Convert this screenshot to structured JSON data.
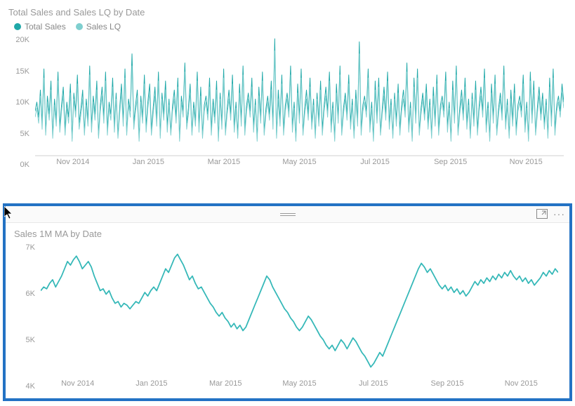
{
  "top_chart": {
    "type": "line",
    "title": "Total Sales and Sales LQ by Date",
    "title_color": "#999999",
    "title_fontsize": 13,
    "background_color": "#ffffff",
    "axis_color": "#d0d0d0",
    "axis_label_color": "#999999",
    "axis_fontsize": 11,
    "ylim": [
      0,
      20
    ],
    "y_ticks": [
      "20K",
      "15K",
      "10K",
      "5K",
      "0K"
    ],
    "x_ticks": [
      "Nov 2014",
      "Jan 2015",
      "Mar 2015",
      "May 2015",
      "Jul 2015",
      "Sep 2015",
      "Nov 2015"
    ],
    "legend": [
      {
        "label": "Total Sales",
        "color": "#1fa8a8"
      },
      {
        "label": "Sales LQ",
        "color": "#7fcfcf"
      }
    ],
    "series": [
      {
        "name": "Total Sales",
        "color": "#1fa8a8",
        "stroke_width": 1,
        "values": [
          7.5,
          9.0,
          6.5,
          11.0,
          5.5,
          14.5,
          4.0,
          10.0,
          7.0,
          12.5,
          3.5,
          9.5,
          6.0,
          14.0,
          5.0,
          8.5,
          11.5,
          4.5,
          9.0,
          6.5,
          12.0,
          3.0,
          10.5,
          7.5,
          13.5,
          5.5,
          8.0,
          11.0,
          4.0,
          9.5,
          6.0,
          15.0,
          5.0,
          10.0,
          7.0,
          12.5,
          3.5,
          8.5,
          11.5,
          6.5,
          14.0,
          4.5,
          9.0,
          7.0,
          13.0,
          5.0,
          10.5,
          3.5,
          8.0,
          12.0,
          6.0,
          14.5,
          4.0,
          9.5,
          7.5,
          17.0,
          5.5,
          8.5,
          11.0,
          3.0,
          10.0,
          6.5,
          13.5,
          5.0,
          9.0,
          12.0,
          4.5,
          8.0,
          11.5,
          6.0,
          14.0,
          3.5,
          10.5,
          7.0,
          12.5,
          5.0,
          9.5,
          4.0,
          8.5,
          11.0,
          6.5,
          13.0,
          3.0,
          10.0,
          7.5,
          15.5,
          5.5,
          8.0,
          12.0,
          4.0,
          9.0,
          6.0,
          14.0,
          5.0,
          11.5,
          3.5,
          8.5,
          10.0,
          7.0,
          13.0,
          4.5,
          9.5,
          6.5,
          12.5,
          3.0,
          10.5,
          5.5,
          14.5,
          4.0,
          8.0,
          11.0,
          7.0,
          13.5,
          5.0,
          9.0,
          3.5,
          12.0,
          6.0,
          15.0,
          4.5,
          8.5,
          10.5,
          7.5,
          13.0,
          5.0,
          9.5,
          3.0,
          11.5,
          6.5,
          14.0,
          4.0,
          8.0,
          10.0,
          7.0,
          12.5,
          5.5,
          19.5,
          3.5,
          11.0,
          6.0,
          13.5,
          4.5,
          8.5,
          10.5,
          7.5,
          15.0,
          5.0,
          9.0,
          3.0,
          12.0,
          6.5,
          14.5,
          4.0,
          8.0,
          11.0,
          7.0,
          13.0,
          5.5,
          9.5,
          3.5,
          10.5,
          6.0,
          12.5,
          4.5,
          8.5,
          11.5,
          7.5,
          14.0,
          5.0,
          9.0,
          3.0,
          12.0,
          6.5,
          15.0,
          4.0,
          8.0,
          10.5,
          7.0,
          13.5,
          5.5,
          9.5,
          3.5,
          11.0,
          6.0,
          19.0,
          4.5,
          8.5,
          10.0,
          7.5,
          14.5,
          5.0,
          9.0,
          3.0,
          12.5,
          6.5,
          13.0,
          4.0,
          8.0,
          11.5,
          7.0,
          14.0,
          5.5,
          9.5,
          3.5,
          10.5,
          6.0,
          12.0,
          4.5,
          8.5,
          11.0,
          7.5,
          15.5,
          5.0,
          9.0,
          3.0,
          13.0,
          6.5,
          14.5,
          4.0,
          8.0,
          10.5,
          7.0,
          12.0,
          5.5,
          9.5,
          3.5,
          11.5,
          6.0,
          13.5,
          4.5,
          8.5,
          10.0,
          7.5,
          14.0,
          5.0,
          9.0,
          3.0,
          12.5,
          6.5,
          15.0,
          4.0,
          8.0,
          11.0,
          7.0,
          13.0,
          5.5,
          9.5,
          3.5,
          10.5,
          6.0,
          12.5,
          4.5,
          8.5,
          11.5,
          7.5,
          14.5,
          5.0,
          9.0,
          3.0,
          12.0,
          6.5,
          13.5,
          4.0,
          8.0,
          10.5,
          7.0,
          15.0,
          5.5,
          9.5,
          3.5,
          11.0,
          6.0,
          12.0,
          4.5,
          8.5,
          10.0,
          7.5,
          13.5,
          5.0,
          9.0,
          3.0,
          14.0,
          6.5,
          12.5,
          4.0,
          8.0,
          11.5,
          7.0,
          10.5,
          5.5,
          9.5,
          3.5,
          13.0,
          6.0,
          14.5,
          4.5,
          8.5,
          10.0,
          7.5,
          12.0,
          9.0
        ]
      },
      {
        "name": "Sales LQ",
        "color": "#7fcfcf",
        "stroke_width": 1,
        "values": [
          6.5,
          8.0,
          5.5,
          10.0,
          4.5,
          13.0,
          3.5,
          9.0,
          6.0,
          11.0,
          3.0,
          8.5,
          5.0,
          12.5,
          4.0,
          7.5,
          10.0,
          3.5,
          8.0,
          5.5,
          10.5,
          2.5,
          9.5,
          6.5,
          12.0,
          4.5,
          7.0,
          9.5,
          3.5,
          8.5,
          5.0,
          13.5,
          4.0,
          9.0,
          6.0,
          11.0,
          3.0,
          7.5,
          10.0,
          5.5,
          12.5,
          3.5,
          8.0,
          6.0,
          11.5,
          4.0,
          9.5,
          3.0,
          7.0,
          10.5,
          5.0,
          13.0,
          3.5,
          8.5,
          6.5,
          15.0,
          4.5,
          7.5,
          9.5,
          2.5,
          9.0,
          5.5,
          12.0,
          4.0,
          8.0,
          10.5,
          3.5,
          7.0,
          10.0,
          5.0,
          12.5,
          3.0,
          9.5,
          6.0,
          11.0,
          4.0,
          8.5,
          3.5,
          7.5,
          9.5,
          5.5,
          11.5,
          2.5,
          9.0,
          6.5,
          14.0,
          4.5,
          7.0,
          10.5,
          3.5,
          8.0,
          5.0,
          12.5,
          4.0,
          10.0,
          3.0,
          7.5,
          9.0,
          6.0,
          11.5,
          3.5,
          8.5,
          5.5,
          11.0,
          2.5,
          9.5,
          4.5,
          13.0,
          3.5,
          7.0,
          9.5,
          6.0,
          12.0,
          4.0,
          8.0,
          3.0,
          10.5,
          5.0,
          13.5,
          3.5,
          7.5,
          9.5,
          6.5,
          11.5,
          4.0,
          8.5,
          2.5,
          10.0,
          5.5,
          12.5,
          3.5,
          7.0,
          9.0,
          6.0,
          11.0,
          4.5,
          17.5,
          3.0,
          9.5,
          5.0,
          12.0,
          3.5,
          7.5,
          9.5,
          6.5,
          13.5,
          4.0,
          8.0,
          2.5,
          10.5,
          5.5,
          13.0,
          3.5,
          7.0,
          9.5,
          6.0,
          11.5,
          4.5,
          8.5,
          3.0,
          9.5,
          5.0,
          11.0,
          3.5,
          7.5,
          10.0,
          6.5,
          12.5,
          4.0,
          8.0,
          2.5,
          10.5,
          5.5,
          13.5,
          3.5,
          7.0,
          9.5,
          6.0,
          12.0,
          4.5,
          8.5,
          3.0,
          9.5,
          5.0,
          17.0,
          3.5,
          7.5,
          9.0,
          6.5,
          13.0,
          4.0,
          8.0,
          2.5,
          11.0,
          5.5,
          11.5,
          3.5,
          7.0,
          10.0,
          6.0,
          12.5,
          4.5,
          8.5,
          3.0,
          9.5,
          5.0,
          10.5,
          3.5,
          7.5,
          9.5,
          6.5,
          14.0,
          4.0,
          8.0,
          2.5,
          11.5,
          5.5,
          13.0,
          3.5,
          7.0,
          9.5,
          6.0,
          10.5,
          4.5,
          8.5,
          3.0,
          10.0,
          5.0,
          12.0,
          3.5,
          7.5,
          9.0,
          6.5,
          12.5,
          4.0,
          8.0,
          2.5,
          11.0,
          5.5,
          13.5,
          3.5,
          7.0,
          9.5,
          6.0,
          11.5,
          4.5,
          8.5,
          3.0,
          9.5,
          5.0,
          11.0,
          3.5,
          7.5,
          10.0,
          6.5,
          13.0,
          4.0,
          8.0,
          2.5,
          10.5,
          5.5,
          12.0,
          3.5,
          7.0,
          9.5,
          6.0,
          13.5,
          4.5,
          8.5,
          3.0,
          9.5,
          5.0,
          10.5,
          3.5,
          7.5,
          9.0,
          6.5,
          12.0,
          4.0,
          8.0,
          2.5,
          12.5,
          5.5,
          11.0,
          3.5,
          7.0,
          10.0,
          6.0,
          9.5,
          4.5,
          8.5,
          3.0,
          11.5,
          5.0,
          13.0,
          3.5,
          7.5,
          9.0,
          6.5,
          10.5,
          8.0
        ]
      }
    ]
  },
  "bottom_chart": {
    "type": "line",
    "title": "Sales 1M MA by Date",
    "title_color": "#999999",
    "title_fontsize": 13,
    "background_color": "#ffffff",
    "selection_border_color": "#2372c4",
    "selection_border_width": 4,
    "axis_color": "#d0d0d0",
    "axis_label_color": "#999999",
    "axis_fontsize": 11,
    "ylim": [
      3.5,
      7.2
    ],
    "y_ticks": [
      "7K",
      "6K",
      "5K",
      "4K"
    ],
    "x_ticks": [
      "Nov 2014",
      "Jan 2015",
      "Mar 2015",
      "May 2015",
      "Jul 2015",
      "Sep 2015",
      "Nov 2015"
    ],
    "series": [
      {
        "name": "Sales 1M MA",
        "color": "#35b8b8",
        "stroke_width": 1.8,
        "values": [
          5.9,
          6.0,
          5.95,
          6.1,
          6.2,
          6.0,
          6.15,
          6.3,
          6.5,
          6.7,
          6.6,
          6.75,
          6.85,
          6.7,
          6.5,
          6.6,
          6.7,
          6.55,
          6.3,
          6.1,
          5.9,
          5.95,
          5.8,
          5.9,
          5.7,
          5.55,
          5.6,
          5.45,
          5.55,
          5.5,
          5.4,
          5.5,
          5.6,
          5.55,
          5.7,
          5.85,
          5.75,
          5.9,
          6.0,
          5.9,
          6.1,
          6.3,
          6.5,
          6.4,
          6.6,
          6.8,
          6.9,
          6.75,
          6.6,
          6.4,
          6.2,
          6.3,
          6.1,
          5.95,
          6.0,
          5.85,
          5.7,
          5.55,
          5.45,
          5.3,
          5.2,
          5.3,
          5.15,
          5.05,
          4.9,
          5.0,
          4.85,
          4.95,
          4.8,
          4.9,
          5.1,
          5.3,
          5.5,
          5.7,
          5.9,
          6.1,
          6.3,
          6.2,
          6.0,
          5.85,
          5.7,
          5.55,
          5.4,
          5.3,
          5.15,
          5.05,
          4.9,
          4.8,
          4.9,
          5.05,
          5.2,
          5.1,
          4.95,
          4.8,
          4.65,
          4.55,
          4.4,
          4.3,
          4.4,
          4.25,
          4.4,
          4.55,
          4.45,
          4.3,
          4.45,
          4.6,
          4.5,
          4.35,
          4.2,
          4.1,
          3.95,
          3.8,
          3.9,
          4.05,
          4.2,
          4.1,
          4.3,
          4.5,
          4.7,
          4.9,
          5.1,
          5.3,
          5.5,
          5.7,
          5.9,
          6.1,
          6.3,
          6.5,
          6.65,
          6.55,
          6.4,
          6.5,
          6.35,
          6.2,
          6.05,
          5.95,
          6.05,
          5.9,
          6.0,
          5.85,
          5.95,
          5.8,
          5.9,
          5.75,
          5.85,
          6.0,
          6.15,
          6.05,
          6.2,
          6.1,
          6.25,
          6.15,
          6.3,
          6.2,
          6.35,
          6.25,
          6.4,
          6.3,
          6.45,
          6.3,
          6.2,
          6.3,
          6.15,
          6.25,
          6.1,
          6.2,
          6.05,
          6.15,
          6.25,
          6.4,
          6.3,
          6.45,
          6.35,
          6.5,
          6.4
        ]
      }
    ]
  },
  "toolbar": {
    "focus_tooltip": "Focus mode",
    "more_tooltip": "More options"
  }
}
